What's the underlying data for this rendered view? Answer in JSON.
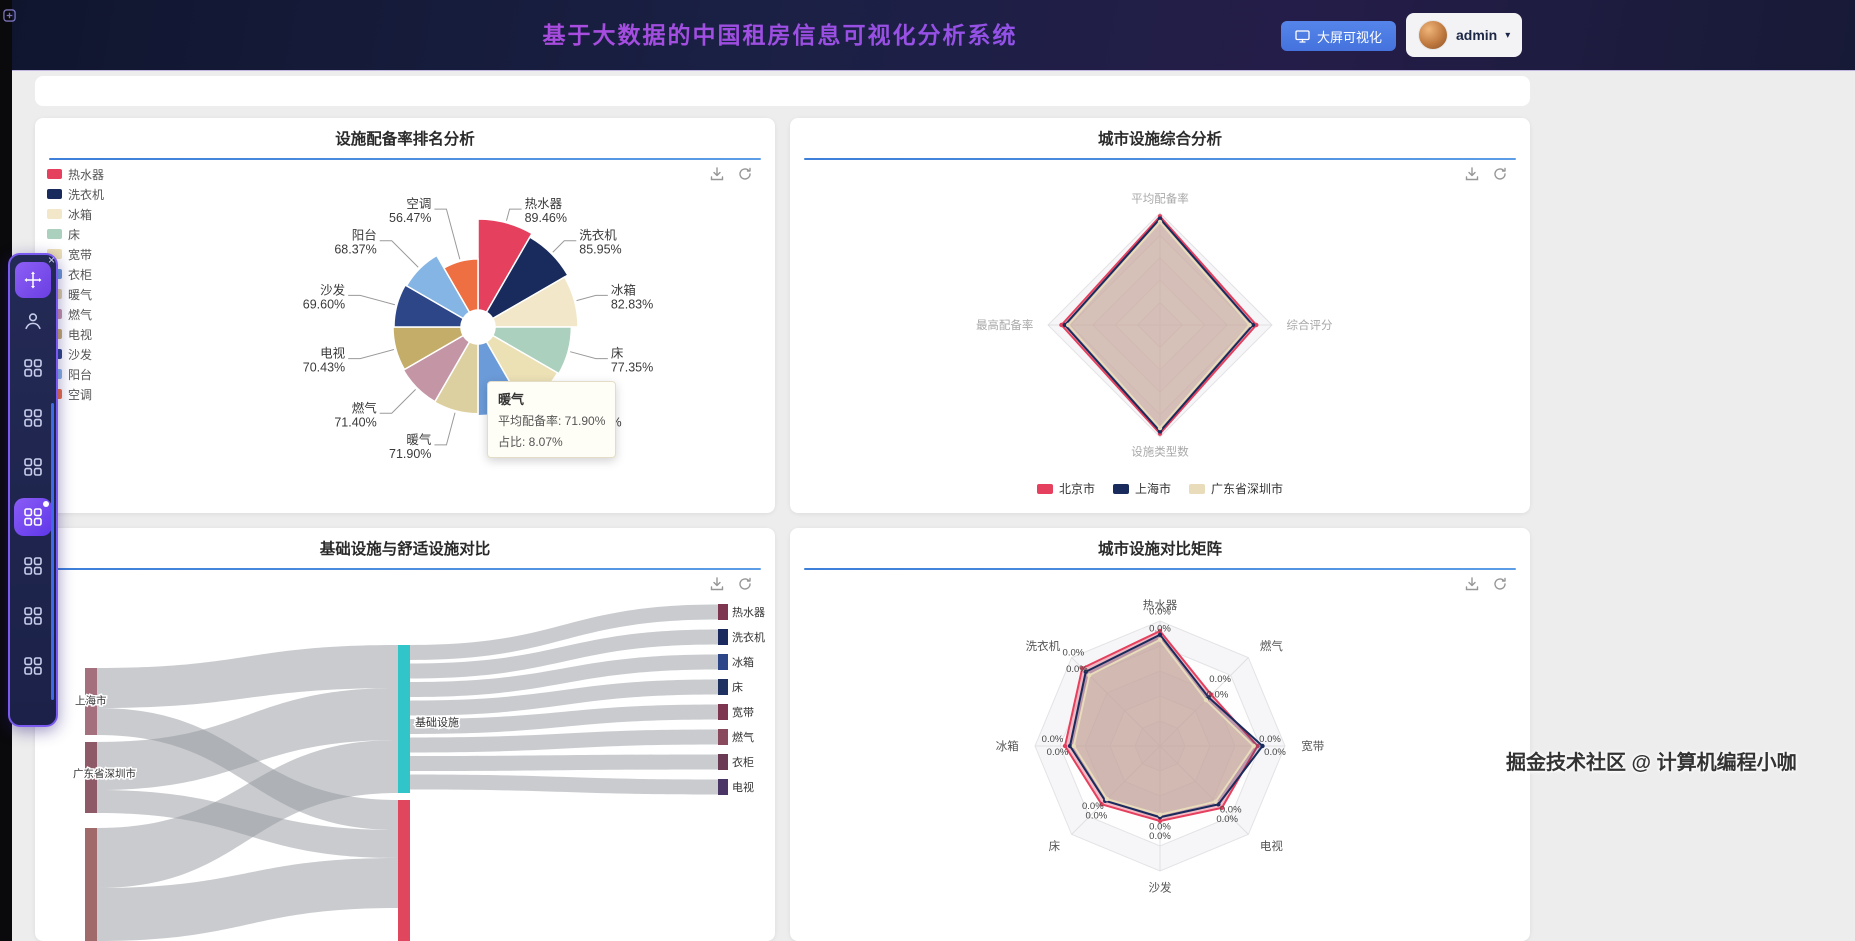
{
  "header": {
    "title": "基于大数据的中国租房信息可视化分析系统",
    "big_screen_button": "大屏可视化",
    "username": "admin",
    "caret_glyph": "▾"
  },
  "sidebar": {
    "close_glyph": "×",
    "items": [
      {
        "icon": "person-icon",
        "active": false
      },
      {
        "icon": "grid-icon",
        "active": false
      },
      {
        "icon": "grid-icon",
        "active": false
      },
      {
        "icon": "grid-icon",
        "active": false
      },
      {
        "icon": "grid-icon",
        "active": true
      },
      {
        "icon": "grid-icon",
        "active": false
      },
      {
        "icon": "grid-icon",
        "active": false
      },
      {
        "icon": "grid-icon",
        "active": false
      }
    ]
  },
  "watermark": "掘金技术社区 @ 计算机编程小咖",
  "cards": {
    "facility_ranking": {
      "title": "设施配备率排名分析",
      "tooltip": {
        "name": "暖气",
        "rate_line": "平均配备率: 71.90%",
        "share_line": "占比: 8.07%"
      }
    },
    "city_comprehensive": {
      "title": "城市设施综合分析"
    },
    "basic_vs_comfort": {
      "title": "基础设施与舒适设施对比"
    },
    "city_matrix": {
      "title": "城市设施对比矩阵"
    }
  },
  "chart_data": [
    {
      "id": "facility-rate-rose-pie",
      "type": "pie",
      "title": "设施配备率排名分析",
      "unit": "%",
      "items": [
        {
          "name": "热水器",
          "value": 89.46,
          "color": "#e5405e"
        },
        {
          "name": "洗衣机",
          "value": 85.95,
          "color": "#182b5c"
        },
        {
          "name": "冰箱",
          "value": 82.83,
          "color": "#f2e8c9"
        },
        {
          "name": "床",
          "value": 77.35,
          "color": "#abd0bd"
        },
        {
          "name": "宽带",
          "value": 76.06,
          "color": "#ece0b5"
        },
        {
          "name": "衣柜",
          "value": 73.56,
          "color": "#6b9bd8"
        },
        {
          "name": "暖气",
          "value": 71.9,
          "color": "#ddd0a0"
        },
        {
          "name": "燃气",
          "value": 71.4,
          "color": "#c495a5"
        },
        {
          "name": "电视",
          "value": 70.43,
          "color": "#c4ad68"
        },
        {
          "name": "沙发",
          "value": 69.6,
          "color": "#2c4687"
        },
        {
          "name": "阳台",
          "value": 68.37,
          "color": "#85b5e5"
        },
        {
          "name": "空调",
          "value": 56.47,
          "color": "#ee6f41"
        }
      ]
    },
    {
      "id": "city-comprehensive-radar",
      "type": "radar",
      "title": "城市设施综合分析",
      "axes": [
        "平均配备率",
        "综合评分",
        "设施类型数",
        "最高配备率"
      ],
      "series": [
        {
          "name": "北京市",
          "color": "#e5405e",
          "values": [
            0.97,
            0.86,
            0.97,
            0.88
          ]
        },
        {
          "name": "上海市",
          "color": "#182b5c",
          "values": [
            0.95,
            0.83,
            0.95,
            0.85
          ]
        },
        {
          "name": "广东省深圳市",
          "color": "#e8dcba",
          "values": [
            0.92,
            0.8,
            0.92,
            0.82
          ]
        }
      ]
    },
    {
      "id": "basic-comfort-sankey",
      "type": "sankey",
      "title": "基础设施与舒适设施对比",
      "nodes": {
        "left": [
          {
            "label": "上海市",
            "color": "#a4707e"
          },
          {
            "label": "广东省深圳市",
            "color": "#8f5a68"
          },
          {
            "label": "",
            "color": "#a06a6a"
          }
        ],
        "middle": [
          {
            "label": "基础设施",
            "color": "#31c5c9"
          },
          {
            "label": "",
            "color": "#e0465e"
          }
        ],
        "right": [
          {
            "label": "热水器",
            "color": "#7d3550"
          },
          {
            "label": "洗衣机",
            "color": "#1a2a5e"
          },
          {
            "label": "冰箱",
            "color": "#2c4687"
          },
          {
            "label": "床",
            "color": "#1f3161"
          },
          {
            "label": "宽带",
            "color": "#7d3550"
          },
          {
            "label": "燃气",
            "color": "#8a4a5e"
          },
          {
            "label": "衣柜",
            "color": "#6b3a55"
          },
          {
            "label": "电视",
            "color": "#4a3566"
          }
        ]
      }
    },
    {
      "id": "city-facility-matrix-radar",
      "type": "radar",
      "title": "城市设施对比矩阵",
      "point_label": "0.0%",
      "axes": [
        "热水器",
        "燃气",
        "宽带",
        "电视",
        "沙发",
        "床",
        "冰箱",
        "洗衣机"
      ],
      "series": [
        {
          "name": "北京市",
          "color": "#e5405e",
          "values": [
            0.92,
            0.58,
            0.78,
            0.7,
            0.6,
            0.66,
            0.76,
            0.88
          ]
        },
        {
          "name": "上海市",
          "color": "#182b5c",
          "values": [
            0.89,
            0.55,
            0.82,
            0.66,
            0.57,
            0.62,
            0.72,
            0.84
          ]
        },
        {
          "name": "广东省深圳市",
          "color": "#e8dcba",
          "values": [
            0.85,
            0.52,
            0.75,
            0.63,
            0.55,
            0.6,
            0.69,
            0.8
          ]
        }
      ]
    }
  ]
}
